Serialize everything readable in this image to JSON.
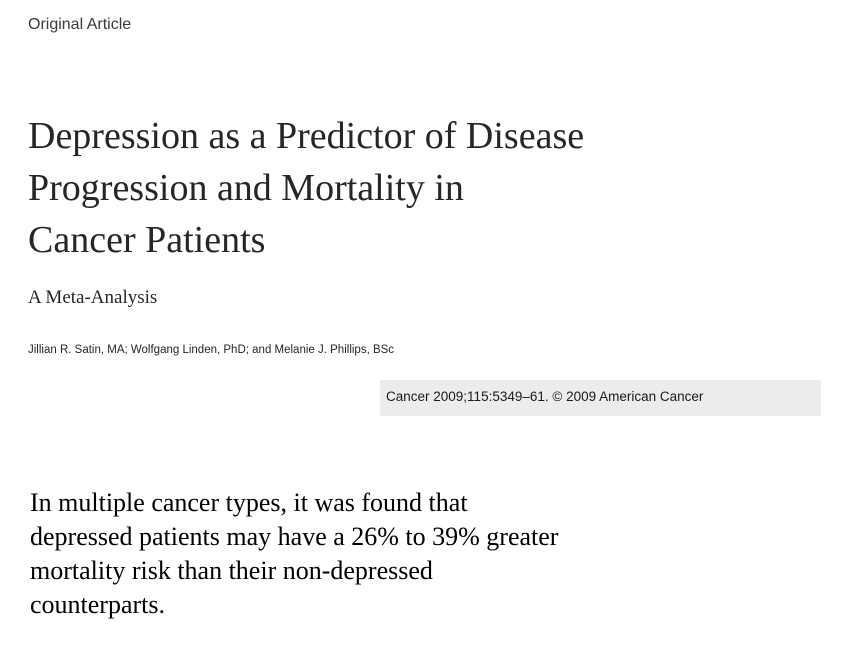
{
  "article_type": "Original Article",
  "title_lines": [
    "Depression as a Predictor of Disease",
    "Progression and Mortality in",
    "Cancer Patients"
  ],
  "subtitle": "A Meta-Analysis",
  "authors": "Jillian R. Satin, MA; Wolfgang Linden, PhD; and Melanie J. Phillips, BSc",
  "citation": "Cancer 2009;115:5349–61. © 2009 American Cancer",
  "finding_lines": [
    "In multiple cancer types, it was found that",
    "depressed patients may have a 26% to 39% greater",
    "mortality risk than their non-depressed",
    "counterparts."
  ]
}
